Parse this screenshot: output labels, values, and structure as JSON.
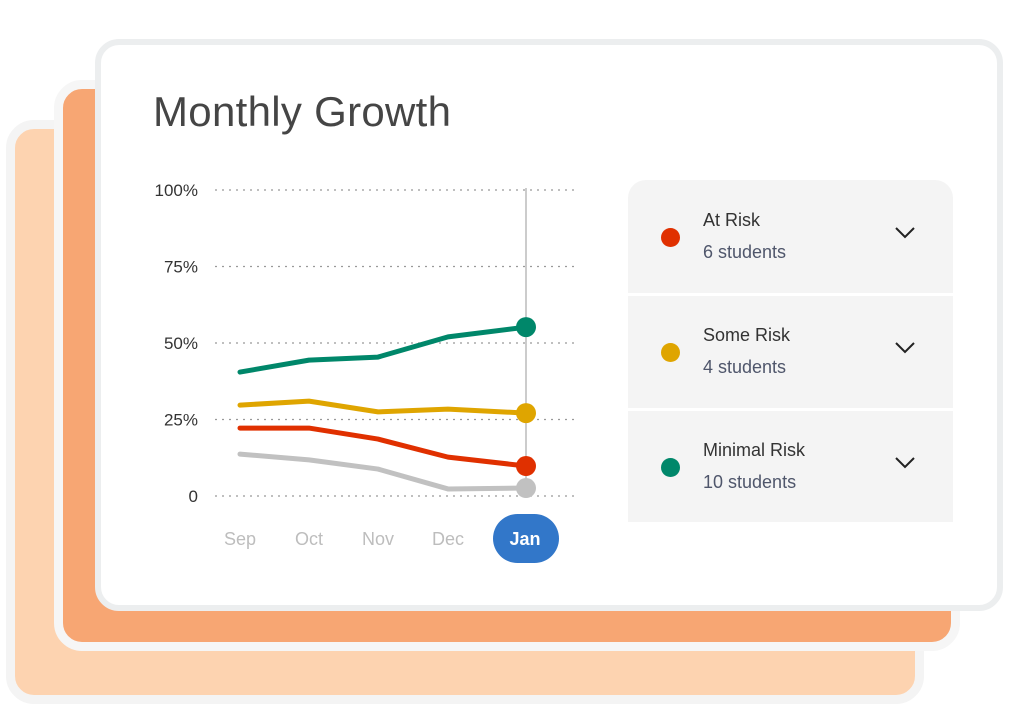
{
  "title": "Monthly Growth",
  "chart_data": {
    "type": "line",
    "title": "Monthly Growth",
    "categories": [
      "Sep",
      "Oct",
      "Nov",
      "Dec",
      "Jan"
    ],
    "selected_category": "Jan",
    "yticks": [
      "100%",
      "75%",
      "50%",
      "25%",
      "0"
    ],
    "ylim": [
      0,
      100
    ],
    "grid": "horizontal dotted",
    "series": [
      {
        "name": "Minimal Risk",
        "color": "#00876a",
        "values": [
          40.5,
          44.4,
          45.4,
          52,
          55.2
        ]
      },
      {
        "name": "Some Risk",
        "color": "#dfa500",
        "values": [
          29.7,
          31,
          27.5,
          28.4,
          27.1
        ]
      },
      {
        "name": "At Risk",
        "color": "#e03000",
        "values": [
          22.2,
          22.2,
          18.6,
          12.7,
          9.8
        ]
      },
      {
        "color": "#c1c1c1",
        "values": [
          13.7,
          11.8,
          8.8,
          2.3,
          2.6
        ]
      }
    ]
  },
  "legend": [
    {
      "label": "At Risk",
      "count": "6 students",
      "color": "#e03000",
      "icon": "chevron-down-icon"
    },
    {
      "label": "Some Risk",
      "count": "4 students",
      "color": "#dfa500",
      "icon": "chevron-down-icon"
    },
    {
      "label": "Minimal Risk",
      "count": "10 students",
      "color": "#00876a",
      "icon": "chevron-down-icon"
    }
  ],
  "colors": {
    "accent": "#3277c9",
    "back_card": "#fdd3b0",
    "middle_card": "#f7a673"
  }
}
